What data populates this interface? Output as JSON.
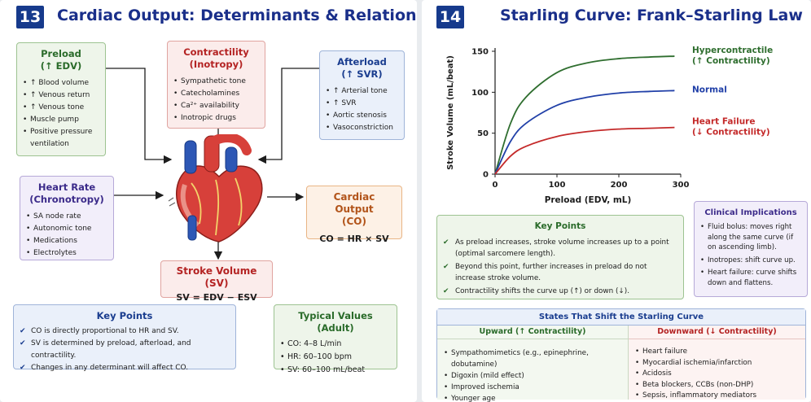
{
  "left": {
    "number": "13",
    "title": "Cardiac Output: Determinants & Relationships",
    "preload": {
      "title": "Preload",
      "subtitle": "(↑ EDV)",
      "items": [
        "↑ Blood volume",
        "↑ Venous return",
        "↑ Venous tone",
        "Muscle pump",
        "Positive pressure ventilation"
      ]
    },
    "contractility": {
      "title": "Contractility",
      "subtitle": "(Inotropy)",
      "items": [
        "Sympathetic tone",
        "Catecholamines",
        "Ca²⁺ availability",
        "Inotropic drugs"
      ]
    },
    "afterload": {
      "title": "Afterload",
      "subtitle": "(↑ SVR)",
      "items": [
        "↑ Arterial tone",
        "↑ SVR",
        "Aortic stenosis",
        "Vasoconstriction"
      ]
    },
    "heart_rate": {
      "title": "Heart Rate",
      "subtitle": "(Chronotropy)",
      "items": [
        "SA node rate",
        "Autonomic tone",
        "Medications",
        "Electrolytes"
      ]
    },
    "cardiac_output": {
      "title": "Cardiac Output",
      "subtitle": "(CO)",
      "formula": "CO = HR × SV"
    },
    "stroke_volume": {
      "title": "Stroke Volume (SV)",
      "formula": "SV = EDV − ESV"
    },
    "key_points": {
      "title": "Key Points",
      "items": [
        "CO is directly proportional to HR and SV.",
        "SV is determined by preload, afterload, and contractility.",
        "Changes in any determinant will affect CO."
      ]
    },
    "typical_values": {
      "title": "Typical Values (Adult)",
      "items": [
        "CO: 4–8 L/min",
        "HR: 60–100 bpm",
        "SV: 60–100 mL/beat"
      ]
    }
  },
  "right": {
    "number": "14",
    "title": "Starling Curve: Frank–Starling Law",
    "chart_data": {
      "type": "line",
      "xlabel": "Preload (EDV, mL)",
      "ylabel": "Stroke Volume (mL/beat)",
      "xlim": [
        0,
        300
      ],
      "ylim": [
        0,
        150
      ],
      "xticks": [
        "0",
        "100",
        "200",
        "300"
      ],
      "yticks": [
        "0",
        "50",
        "100",
        "150"
      ],
      "grid": false,
      "series": [
        {
          "name": "Hypercontractile",
          "name2": "(↑ Contractility)",
          "color": "#2f6e2f",
          "x": [
            0,
            25,
            50,
            100,
            150,
            200,
            250,
            290
          ],
          "y": [
            0,
            62,
            94,
            124,
            136,
            141,
            143,
            144
          ]
        },
        {
          "name": "Normal",
          "name2": "",
          "color": "#2140a8",
          "x": [
            0,
            25,
            50,
            100,
            150,
            200,
            250,
            290
          ],
          "y": [
            0,
            40,
            62,
            84,
            94,
            99,
            101,
            102
          ]
        },
        {
          "name": "Heart Failure",
          "name2": "(↓ Contractility)",
          "color": "#c42a2a",
          "x": [
            0,
            25,
            50,
            100,
            150,
            200,
            250,
            290
          ],
          "y": [
            0,
            22,
            34,
            46,
            52,
            55,
            56,
            57
          ]
        }
      ]
    },
    "clinical": {
      "title": "Clinical Implications",
      "items": [
        "Fluid bolus: moves right along the same curve (if on ascending limb).",
        "Inotropes: shift curve up.",
        "Heart failure: curve shifts down and flattens."
      ]
    },
    "key_points": {
      "title": "Key Points",
      "items": [
        "As preload increases, stroke volume increases up to a point (optimal sarcomere length).",
        "Beyond this point, further increases in preload do not increase stroke volume.",
        "Contractility shifts the curve up (↑) or down (↓)."
      ]
    },
    "states": {
      "title": "States That Shift the Starling Curve",
      "upward": {
        "title": "Upward (↑ Contractility)",
        "items": [
          "Sympathomimetics (e.g., epinephrine, dobutamine)",
          "Digoxin (mild effect)",
          "Improved ischemia",
          "Younger age"
        ]
      },
      "downward": {
        "title": "Downward (↓ Contractility)",
        "items": [
          "Heart failure",
          "Myocardial ischemia/infarction",
          "Acidosis",
          "Beta blockers, CCBs (non-DHP)",
          "Sepsis, inflammatory mediators"
        ]
      }
    }
  }
}
